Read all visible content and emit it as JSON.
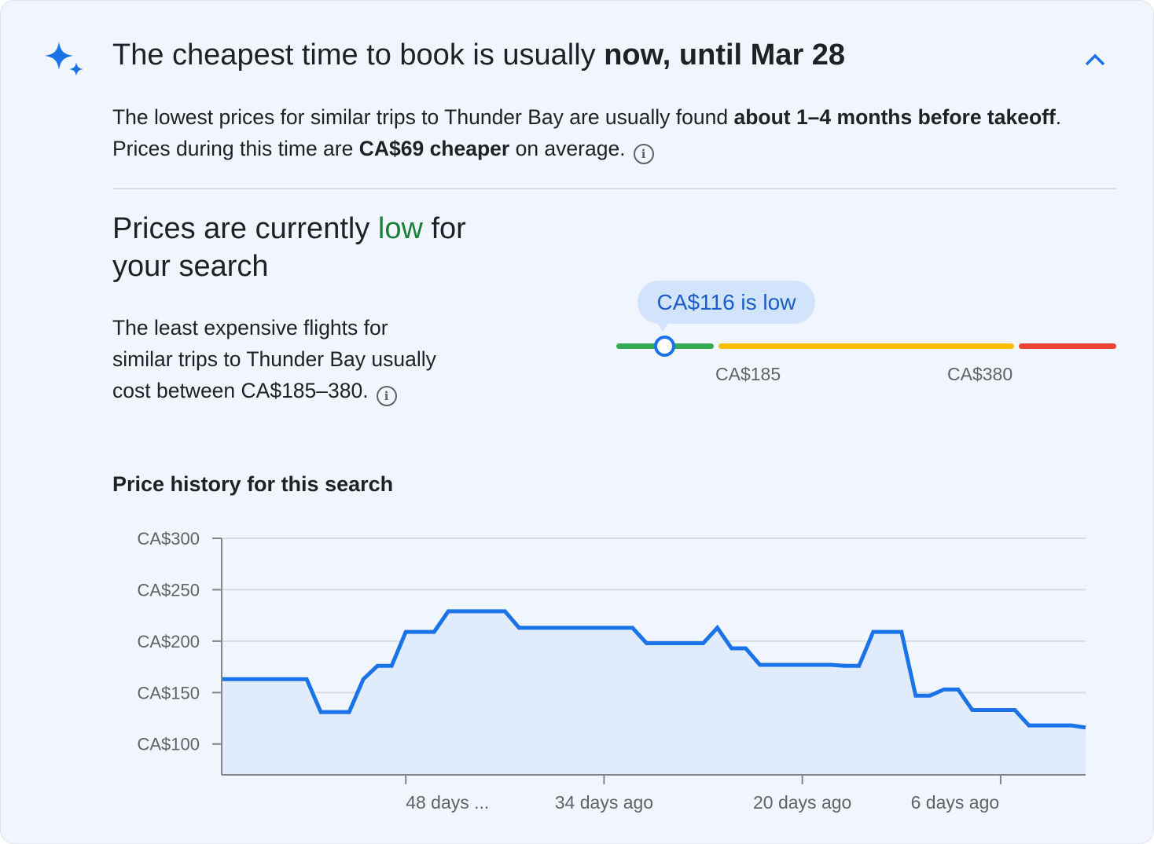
{
  "header": {
    "icon": "sparkle-icon",
    "title_prefix": "The cheapest time to book is usually ",
    "title_bold": "now, until Mar 28",
    "collapse_icon": "chevron-up-icon"
  },
  "summary": {
    "t1": "The lowest prices for similar trips to Thunder Bay are usually found ",
    "b1": "about 1–4 months before takeoff",
    "t2": ". Prices during this time are ",
    "b2": "CA$69 cheaper",
    "t3": " on average.",
    "info_icon": "info-icon"
  },
  "status": {
    "prefix": "Prices are currently ",
    "level": "low",
    "suffix": " for your search",
    "level_color": "#188038"
  },
  "range": {
    "text": "The least expensive flights for similar trips to Thunder Bay usually cost between CA$185–380.",
    "bubble": "CA$116 is low",
    "current_price": 116,
    "low_label": "CA$185",
    "high_label": "CA$380",
    "colors": {
      "low": "#34a853",
      "typical": "#fbbc04",
      "high": "#ea4335",
      "marker": "#1a73e8"
    }
  },
  "history": {
    "title": "Price history for this search"
  },
  "chart_data": {
    "type": "area",
    "xlabel": "",
    "ylabel": "",
    "x_unit": "days ago",
    "xlim": [
      61,
      0
    ],
    "ylim": [
      70,
      300
    ],
    "grid": true,
    "y_ticks": [
      100,
      150,
      200,
      250,
      300
    ],
    "y_tick_labels": [
      "CA$100",
      "CA$150",
      "CA$200",
      "CA$250",
      "CA$300"
    ],
    "x_ticks": [
      48,
      34,
      20,
      6
    ],
    "x_tick_labels": [
      "48 days ...",
      "34 days ago",
      "20 days ago",
      "6 days ago"
    ],
    "line_color": "#1a73e8",
    "fill_color": "#e0ecfb",
    "x": [
      61,
      60,
      59,
      58,
      57,
      56,
      55,
      54,
      53,
      52,
      51,
      50,
      49,
      48,
      47,
      46,
      45,
      44,
      43,
      42,
      41,
      40,
      39,
      38,
      37,
      36,
      35,
      34,
      33,
      32,
      31,
      30,
      29,
      28,
      27,
      26,
      25,
      24,
      23,
      22,
      21,
      20,
      19,
      18,
      17,
      16,
      15,
      14,
      13,
      12,
      11,
      10,
      9,
      8,
      7,
      6,
      5,
      4,
      3,
      2,
      1,
      0
    ],
    "values": [
      163,
      163,
      163,
      163,
      163,
      163,
      163,
      131,
      131,
      131,
      163,
      176,
      176,
      209,
      209,
      209,
      229,
      229,
      229,
      229,
      229,
      213,
      213,
      213,
      213,
      213,
      213,
      213,
      213,
      213,
      198,
      198,
      198,
      198,
      198,
      213,
      193,
      193,
      177,
      177,
      177,
      177,
      177,
      177,
      176,
      176,
      209,
      209,
      209,
      147,
      147,
      153,
      153,
      133,
      133,
      133,
      133,
      118,
      118,
      118,
      118,
      116
    ]
  }
}
